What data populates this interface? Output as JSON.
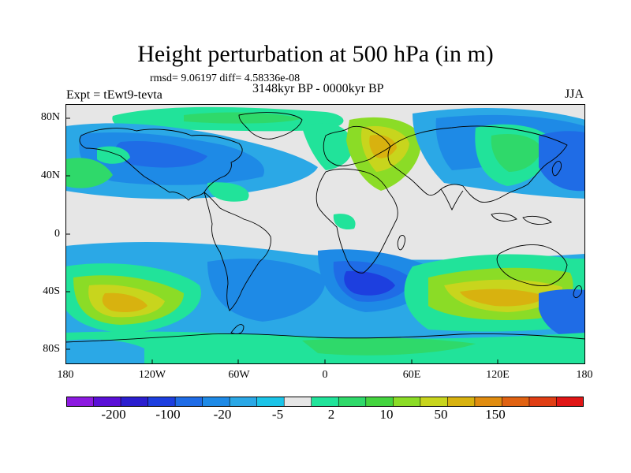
{
  "title": "Height perturbation at 500 hPa (in m)",
  "stats_text": "rmsd= 9.06197 diff= 4.58336e-08",
  "experiment": "Expt = tEwt9-tevta",
  "period": "3148kyr BP - 0000kyr BP",
  "season": "JJA",
  "lat_labels": [
    "80N",
    "40N",
    "0",
    "40S",
    "80S"
  ],
  "lon_labels": [
    "180",
    "120W",
    "60W",
    "0",
    "60E",
    "120E",
    "180"
  ],
  "colorbar": {
    "colors": [
      "#8c1ae0",
      "#5a0fd6",
      "#2b1ecf",
      "#1d3fdf",
      "#1f6ce6",
      "#1e8ae6",
      "#2ba8e6",
      "#1cc4e8",
      "#e6e6e6",
      "#21e39a",
      "#2fd96a",
      "#44d43f",
      "#8bdc26",
      "#c8d51d",
      "#d8b20f",
      "#e08c10",
      "#e06212",
      "#e03e14",
      "#e01616"
    ],
    "labels": [
      "-200",
      "-100",
      "-20",
      "-5",
      "2",
      "10",
      "50",
      "150"
    ]
  }
}
